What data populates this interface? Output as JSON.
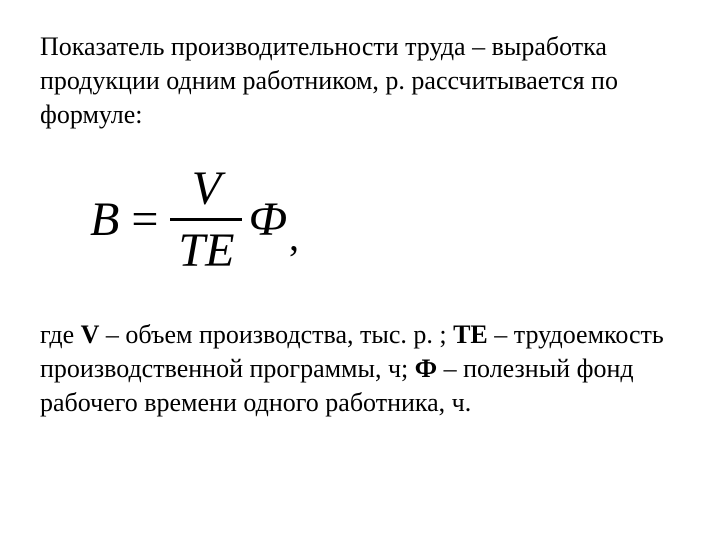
{
  "intro": "Показатель производительности труда – выработка продукции одним работником, р. рассчитывается по формуле:",
  "formula": {
    "lhs": "B",
    "equals": "=",
    "numerator": "V",
    "denominator": "TE",
    "suffix": "Ф",
    "comma": ","
  },
  "legend": {
    "parts": [
      {
        "text": "где ",
        "bold": false
      },
      {
        "text": "V",
        "bold": true
      },
      {
        "text": " – объем производства, тыс. р. ; ",
        "bold": false
      },
      {
        "text": "ТЕ ",
        "bold": true
      },
      {
        "text": "– трудоемкость производственной программы, ч; ",
        "bold": false
      },
      {
        "text": "Ф",
        "bold": true
      },
      {
        "text": " – полезный фонд рабочего времени одного работника, ч.",
        "bold": false
      }
    ]
  },
  "styling": {
    "background_color": "#ffffff",
    "text_color": "#000000",
    "body_fontsize": 26,
    "formula_fontsize": 48,
    "font_family": "Times New Roman",
    "fraction_bar_width": 3
  }
}
